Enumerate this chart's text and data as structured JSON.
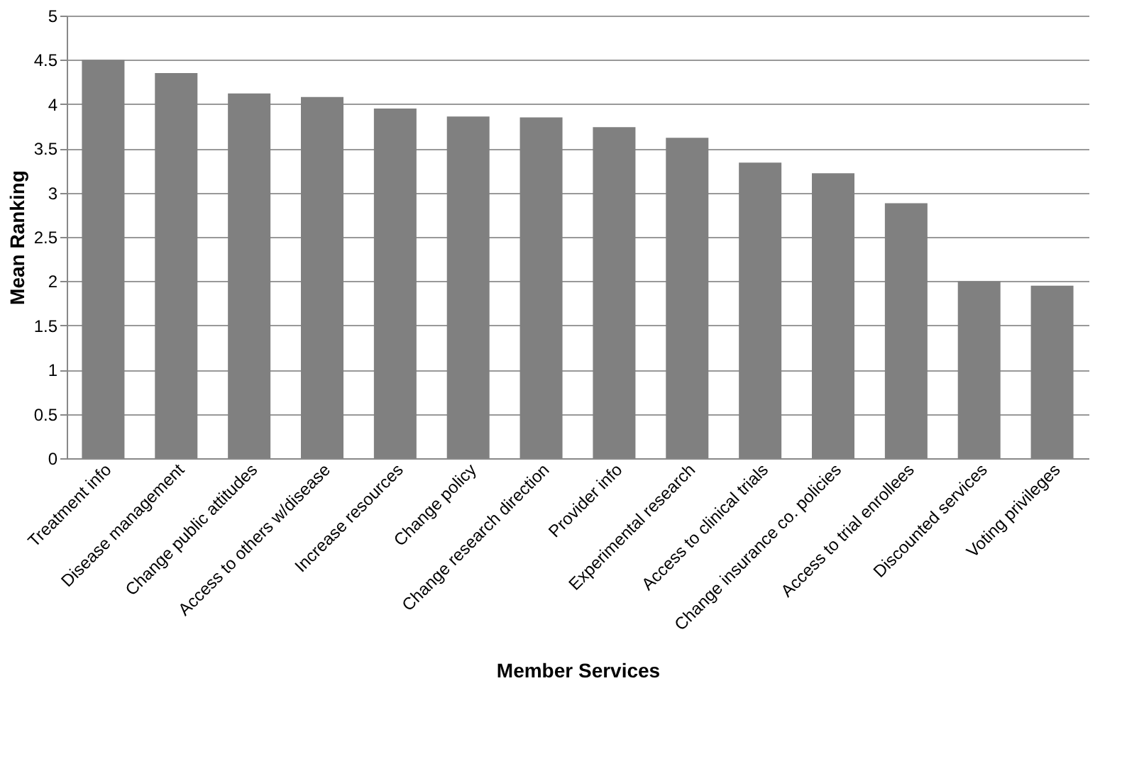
{
  "chart_data": {
    "type": "bar",
    "xlabel": "Member Services",
    "ylabel": "Mean Ranking",
    "categories": [
      "Treatment info",
      "Disease management",
      "Change public attitudes",
      "Access to others w/disease",
      "Increase resources",
      "Change policy",
      "Change research direction",
      "Provider info",
      "Experimental research",
      "Access to clinical trials",
      "Change insurance co. policies",
      "Access to trial enrollees",
      "Discounted services",
      "Voting privileges"
    ],
    "values": [
      4.5,
      4.35,
      4.12,
      4.08,
      3.95,
      3.86,
      3.85,
      3.74,
      3.62,
      3.34,
      3.22,
      2.88,
      2.0,
      1.95
    ],
    "color": "#808080",
    "ylim": [
      0,
      5
    ],
    "yticks": [
      0,
      0.5,
      1,
      1.5,
      2,
      2.5,
      3,
      3.5,
      4,
      4.5,
      5
    ],
    "grid": "y"
  }
}
